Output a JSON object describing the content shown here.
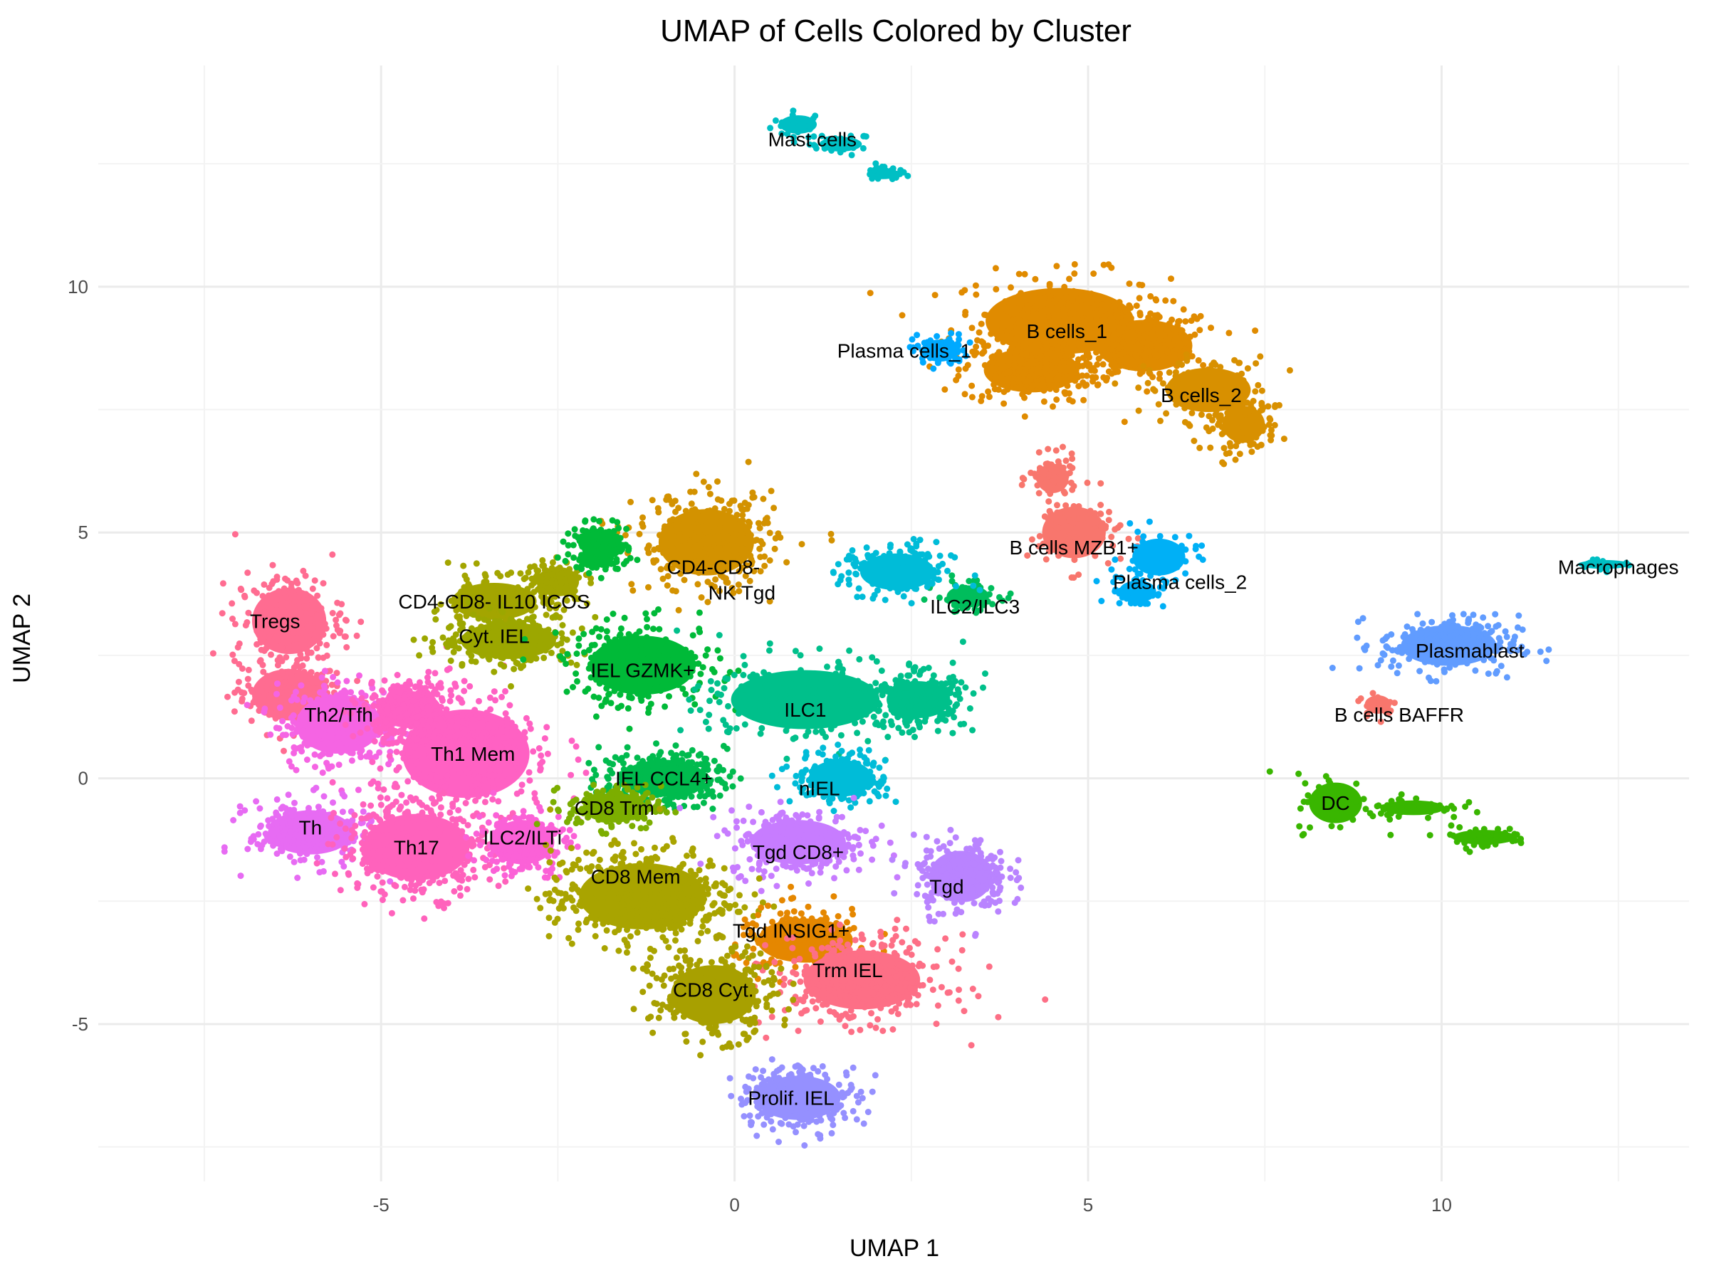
{
  "chart_data": {
    "type": "scatter",
    "title": "UMAP of Cells Colored by Cluster",
    "xlabel": "UMAP 1",
    "ylabel": "UMAP 2",
    "xlim": [
      -9.0,
      13.5
    ],
    "ylim": [
      -8.2,
      14.5
    ],
    "x_ticks": [
      -5,
      0,
      5,
      10
    ],
    "y_ticks": [
      -5,
      0,
      5,
      10
    ],
    "grid": true,
    "legend": "none",
    "clusters": [
      {
        "name": "Mast cells",
        "x": 1.1,
        "y": 13.0,
        "color": "#00BFC4",
        "blobs": [
          [
            0.9,
            13.3,
            0.35,
            0.25
          ],
          [
            1.5,
            12.9,
            0.4,
            0.2
          ],
          [
            2.1,
            12.3,
            0.3,
            0.15
          ]
        ],
        "count": 90
      },
      {
        "name": "B cells_1",
        "x": 4.7,
        "y": 9.1,
        "color": "#E08B00",
        "blobs": [
          [
            4.6,
            9.3,
            1.4,
            0.9
          ],
          [
            5.8,
            8.8,
            0.9,
            0.7
          ],
          [
            4.2,
            8.3,
            0.9,
            0.6
          ]
        ],
        "count": 700
      },
      {
        "name": "Plasma cells_1",
        "x": 2.4,
        "y": 8.7,
        "color": "#00A9FF",
        "blobs": [
          [
            2.9,
            8.7,
            0.35,
            0.3
          ]
        ],
        "count": 70
      },
      {
        "name": "B cells_2",
        "x": 6.6,
        "y": 7.8,
        "color": "#D89000",
        "blobs": [
          [
            6.7,
            7.9,
            0.8,
            0.6
          ],
          [
            7.2,
            7.2,
            0.4,
            0.5
          ]
        ],
        "count": 300
      },
      {
        "name": "B cells MZB1+",
        "x": 4.8,
        "y": 4.7,
        "color": "#F8766D",
        "blobs": [
          [
            4.8,
            5.0,
            0.6,
            0.7
          ],
          [
            4.5,
            6.1,
            0.3,
            0.4
          ]
        ],
        "count": 180
      },
      {
        "name": "Plasma cells_2",
        "x": 6.3,
        "y": 4.0,
        "color": "#00B0F6",
        "blobs": [
          [
            6.0,
            4.5,
            0.5,
            0.5
          ],
          [
            5.7,
            3.8,
            0.35,
            0.3
          ]
        ],
        "count": 120
      },
      {
        "name": "Macrophages",
        "x": 12.5,
        "y": 4.3,
        "color": "#00BFC4",
        "blobs": [
          [
            12.3,
            4.35,
            0.5,
            0.12
          ]
        ],
        "count": 18
      },
      {
        "name": "Plasmablast",
        "x": 10.4,
        "y": 2.6,
        "color": "#619CFF",
        "blobs": [
          [
            10.1,
            2.7,
            0.9,
            0.55
          ]
        ],
        "count": 250
      },
      {
        "name": "B cells BAFFR",
        "x": 9.4,
        "y": 1.3,
        "color": "#F8766D",
        "blobs": [
          [
            9.1,
            1.5,
            0.25,
            0.25
          ]
        ],
        "count": 30
      },
      {
        "name": "DC",
        "x": 8.5,
        "y": -0.5,
        "color": "#39B600",
        "blobs": [
          [
            8.5,
            -0.5,
            0.5,
            0.55
          ],
          [
            9.6,
            -0.6,
            0.6,
            0.2
          ],
          [
            10.6,
            -1.2,
            0.6,
            0.2
          ]
        ],
        "count": 180
      },
      {
        "name": "Tregs",
        "x": -6.5,
        "y": 3.2,
        "color": "#FF6C91",
        "blobs": [
          [
            -6.3,
            3.2,
            0.7,
            0.9
          ],
          [
            -6.3,
            1.7,
            0.7,
            0.7
          ]
        ],
        "count": 400
      },
      {
        "name": "Th2/Tfh",
        "x": -5.6,
        "y": 1.3,
        "color": "#F564E3",
        "blobs": [
          [
            -5.6,
            1.1,
            0.8,
            0.8
          ]
        ],
        "count": 300
      },
      {
        "name": "Th1 Mem",
        "x": -3.7,
        "y": 0.5,
        "color": "#FF61C3",
        "blobs": [
          [
            -3.8,
            0.5,
            1.2,
            1.2
          ],
          [
            -4.6,
            1.4,
            0.6,
            0.5
          ]
        ],
        "count": 600
      },
      {
        "name": "Th",
        "x": -6.0,
        "y": -1.0,
        "color": "#E76BF3",
        "blobs": [
          [
            -6.0,
            -1.1,
            0.8,
            0.6
          ]
        ],
        "count": 250
      },
      {
        "name": "Th17",
        "x": -4.5,
        "y": -1.4,
        "color": "#FF62BC",
        "blobs": [
          [
            -4.5,
            -1.4,
            1.0,
            0.9
          ]
        ],
        "count": 400
      },
      {
        "name": "ILC2/ILTi",
        "x": -3.0,
        "y": -1.2,
        "color": "#FB61D7",
        "blobs": [
          [
            -3.0,
            -1.3,
            0.6,
            0.6
          ]
        ],
        "count": 200
      },
      {
        "name": "CD4-CD8- IL10 ICOS",
        "x": -3.4,
        "y": 3.6,
        "color": "#A3A500",
        "blobs": [
          [
            -3.4,
            3.6,
            0.8,
            0.5
          ],
          [
            -2.5,
            4.0,
            0.4,
            0.4
          ]
        ],
        "count": 250
      },
      {
        "name": "Cyt. IEL",
        "x": -3.4,
        "y": 2.9,
        "color": "#9CA700",
        "blobs": [
          [
            -3.2,
            2.8,
            0.9,
            0.5
          ]
        ],
        "count": 250
      },
      {
        "name": "CD4-CD8- NK Tgd",
        "x": -0.3,
        "y": 4.3,
        "color": "#D39200",
        "blobs": [
          [
            -0.4,
            4.8,
            0.9,
            0.9
          ]
        ],
        "count": 350
      },
      {
        "name": "IEL GZMK+",
        "x": -1.3,
        "y": 2.2,
        "color": "#00BA38",
        "blobs": [
          [
            -1.3,
            2.3,
            1.0,
            0.8
          ],
          [
            -1.9,
            4.7,
            0.35,
            0.4
          ]
        ],
        "count": 500
      },
      {
        "name": "ILC1",
        "x": 1.0,
        "y": 1.4,
        "color": "#00C08B",
        "blobs": [
          [
            1.0,
            1.6,
            1.4,
            0.8
          ],
          [
            2.6,
            1.6,
            0.6,
            0.5
          ]
        ],
        "count": 550
      },
      {
        "name": "ILC2/ILC3",
        "x": 3.4,
        "y": 3.5,
        "color": "#00BD5C",
        "blobs": [
          [
            3.3,
            3.7,
            0.4,
            0.3
          ]
        ],
        "count": 70
      },
      {
        "name": "IEL CCL4+",
        "x": -1.0,
        "y": 0.0,
        "color": "#00BB4E",
        "blobs": [
          [
            -1.0,
            0.0,
            0.8,
            0.5
          ]
        ],
        "count": 300
      },
      {
        "name": "nIEL",
        "x": 1.2,
        "y": -0.2,
        "color": "#00BCD8",
        "blobs": [
          [
            1.5,
            0.0,
            0.6,
            0.5
          ],
          [
            2.3,
            4.2,
            0.7,
            0.5
          ]
        ],
        "count": 400
      },
      {
        "name": "CD8 Trm",
        "x": -1.7,
        "y": -0.6,
        "color": "#7CAE00",
        "blobs": [
          [
            -1.7,
            -0.6,
            0.6,
            0.4
          ]
        ],
        "count": 200
      },
      {
        "name": "Tgd CD8+",
        "x": 0.9,
        "y": -1.5,
        "color": "#C77CFF",
        "blobs": [
          [
            0.9,
            -1.3,
            0.9,
            0.6
          ]
        ],
        "count": 300
      },
      {
        "name": "CD8 Mem",
        "x": -1.4,
        "y": -2.0,
        "color": "#A9A400",
        "blobs": [
          [
            -1.3,
            -2.4,
            1.2,
            0.9
          ]
        ],
        "count": 500
      },
      {
        "name": "Tgd",
        "x": 3.0,
        "y": -2.2,
        "color": "#B983FF",
        "blobs": [
          [
            3.2,
            -2.0,
            0.6,
            0.7
          ]
        ],
        "count": 250
      },
      {
        "name": "Tgd INSIG1+",
        "x": 0.8,
        "y": -3.1,
        "color": "#E58700",
        "blobs": [
          [
            1.0,
            -3.3,
            0.9,
            0.6
          ]
        ],
        "count": 200
      },
      {
        "name": "Trm IEL",
        "x": 1.6,
        "y": -3.9,
        "color": "#FD6F86",
        "blobs": [
          [
            1.8,
            -4.1,
            1.1,
            0.8
          ]
        ],
        "count": 400
      },
      {
        "name": "CD8 Cyt.",
        "x": -0.3,
        "y": -4.3,
        "color": "#A8A000",
        "blobs": [
          [
            -0.3,
            -4.4,
            0.8,
            0.8
          ]
        ],
        "count": 300
      },
      {
        "name": "Prolif. IEL",
        "x": 0.8,
        "y": -6.5,
        "color": "#9590FF",
        "blobs": [
          [
            0.9,
            -6.5,
            0.8,
            0.6
          ]
        ],
        "count": 250
      }
    ]
  }
}
